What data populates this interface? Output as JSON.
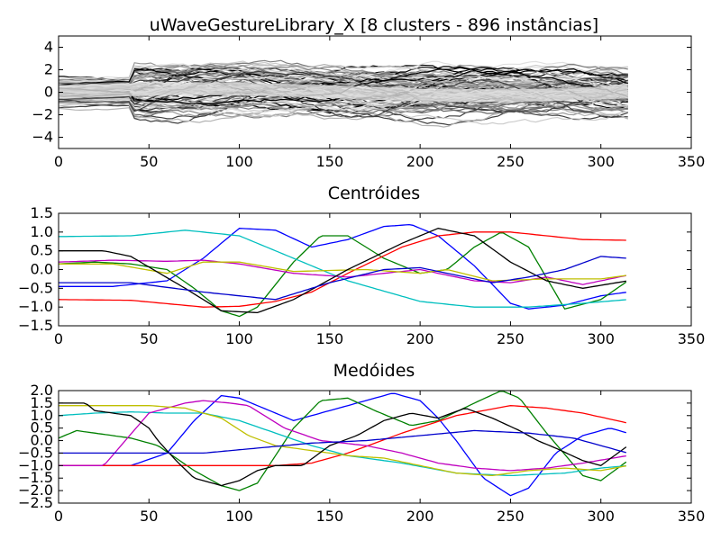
{
  "chart_data": [
    {
      "type": "line",
      "panel": "raw",
      "title": "uWaveGestureLibrary_X [8 clusters - 896 instâncias]",
      "xlim": [
        0,
        350
      ],
      "ylim": [
        -5,
        5
      ],
      "xticks": [
        "0",
        "50",
        "100",
        "150",
        "200",
        "250",
        "300",
        "350"
      ],
      "yticks": [
        "4",
        "2",
        "0",
        "−2",
        "−4"
      ],
      "ytick_values": [
        4,
        2,
        0,
        -2,
        -4
      ],
      "series_length": 315,
      "series_count": 896,
      "colors": [
        "#000000",
        "#404040",
        "#666666",
        "#808080",
        "#999999",
        "#b3b3b3",
        "#cccccc",
        "#e0e0e0"
      ]
    },
    {
      "type": "line",
      "panel": "centroids",
      "title": "Centróides",
      "xlim": [
        0,
        350
      ],
      "ylim": [
        -1.5,
        1.5
      ],
      "xticks": [
        "0",
        "50",
        "100",
        "150",
        "200",
        "250",
        "300",
        "350"
      ],
      "yticks": [
        "1.5",
        "1.0",
        "0.5",
        "0.0",
        "−0.5",
        "−1.0",
        "−1.5"
      ],
      "ytick_values": [
        1.5,
        1.0,
        0.5,
        0.0,
        -0.5,
        -1.0,
        -1.5
      ],
      "series": [
        {
          "color": "#0000ff",
          "x": [
            0,
            30,
            60,
            80,
            100,
            120,
            140,
            160,
            180,
            195,
            210,
            230,
            250,
            260,
            280,
            300,
            315
          ],
          "y": [
            -0.45,
            -0.45,
            -0.3,
            0.3,
            1.1,
            1.05,
            0.6,
            0.8,
            1.15,
            1.2,
            0.9,
            0.1,
            -0.9,
            -1.05,
            -0.95,
            -0.7,
            -0.6
          ]
        },
        {
          "color": "#008000",
          "x": [
            0,
            20,
            40,
            60,
            75,
            90,
            100,
            110,
            130,
            145,
            160,
            180,
            200,
            215,
            230,
            245,
            260,
            280,
            300,
            315
          ],
          "y": [
            0.15,
            0.2,
            0.15,
            0.0,
            -0.5,
            -1.1,
            -1.25,
            -1.0,
            0.2,
            0.9,
            0.9,
            0.3,
            -0.1,
            0.0,
            0.6,
            1.0,
            0.6,
            -1.05,
            -0.8,
            -0.3
          ]
        },
        {
          "color": "#ff0000",
          "x": [
            0,
            40,
            80,
            100,
            120,
            140,
            160,
            190,
            210,
            230,
            250,
            270,
            290,
            315
          ],
          "y": [
            -0.8,
            -0.82,
            -1.0,
            -0.98,
            -0.85,
            -0.6,
            -0.1,
            0.6,
            0.9,
            1.0,
            1.0,
            0.9,
            0.8,
            0.78
          ]
        },
        {
          "color": "#00bfbf",
          "x": [
            0,
            40,
            70,
            100,
            130,
            160,
            200,
            230,
            260,
            290,
            315
          ],
          "y": [
            0.88,
            0.9,
            1.05,
            0.9,
            0.3,
            -0.3,
            -0.85,
            -1.0,
            -1.0,
            -0.9,
            -0.8
          ]
        },
        {
          "color": "#bf00bf",
          "x": [
            0,
            30,
            60,
            80,
            100,
            130,
            160,
            200,
            230,
            250,
            270,
            290,
            315
          ],
          "y": [
            0.2,
            0.25,
            0.22,
            0.25,
            0.15,
            -0.1,
            -0.2,
            0.0,
            -0.3,
            -0.35,
            -0.2,
            -0.4,
            -0.15
          ]
        },
        {
          "color": "#bfbf00",
          "x": [
            0,
            30,
            60,
            80,
            100,
            130,
            170,
            200,
            215,
            240,
            270,
            300,
            315
          ],
          "y": [
            0.15,
            0.15,
            -0.1,
            0.2,
            0.2,
            -0.05,
            0.0,
            -0.1,
            0.0,
            -0.3,
            -0.25,
            -0.25,
            -0.15
          ]
        },
        {
          "color": "#000000",
          "x": [
            0,
            25,
            40,
            70,
            90,
            110,
            130,
            160,
            190,
            210,
            230,
            250,
            270,
            290,
            315
          ],
          "y": [
            0.5,
            0.5,
            0.35,
            -0.5,
            -1.1,
            -1.15,
            -0.8,
            0.0,
            0.7,
            1.1,
            0.9,
            0.2,
            -0.3,
            -0.5,
            -0.3
          ]
        },
        {
          "color": "#0000cc",
          "x": [
            0,
            40,
            80,
            120,
            150,
            180,
            200,
            215,
            240,
            260,
            280,
            300,
            315
          ],
          "y": [
            -0.35,
            -0.35,
            -0.6,
            -0.8,
            -0.35,
            0.0,
            0.05,
            -0.1,
            -0.35,
            -0.2,
            0.0,
            0.35,
            0.3
          ]
        }
      ]
    },
    {
      "type": "line",
      "panel": "medoids",
      "title": "Medóides",
      "xlim": [
        0,
        350
      ],
      "ylim": [
        -2.5,
        2.0
      ],
      "xticks": [
        "0",
        "50",
        "100",
        "150",
        "200",
        "250",
        "300",
        "350"
      ],
      "yticks": [
        "2.0",
        "1.5",
        "1.0",
        "0.5",
        "0.0",
        "−0.5",
        "−1.0",
        "−1.5",
        "−2.0",
        "−2.5"
      ],
      "ytick_values": [
        2.0,
        1.5,
        1.0,
        0.5,
        0.0,
        -0.5,
        -1.0,
        -1.5,
        -2.0,
        -2.5
      ],
      "series": [
        {
          "color": "#0000ff",
          "x": [
            0,
            25,
            40,
            60,
            75,
            90,
            100,
            110,
            130,
            150,
            170,
            185,
            200,
            210,
            220,
            235,
            250,
            260,
            275,
            290,
            305,
            315
          ],
          "y": [
            -1.0,
            -1.0,
            -1.0,
            -0.5,
            0.8,
            1.8,
            1.7,
            1.4,
            0.8,
            1.2,
            1.6,
            1.9,
            1.6,
            0.9,
            0.0,
            -1.5,
            -2.2,
            -1.9,
            -0.5,
            0.2,
            0.5,
            0.3
          ]
        },
        {
          "color": "#008000",
          "x": [
            0,
            10,
            20,
            40,
            55,
            75,
            90,
            100,
            110,
            130,
            145,
            160,
            175,
            195,
            210,
            230,
            245,
            255,
            270,
            290,
            300,
            315
          ],
          "y": [
            0.1,
            0.4,
            0.3,
            0.1,
            -0.2,
            -1.2,
            -1.8,
            -2.0,
            -1.7,
            0.5,
            1.6,
            1.7,
            1.2,
            0.6,
            0.8,
            1.5,
            2.0,
            1.7,
            0.3,
            -1.4,
            -1.6,
            -0.8
          ]
        },
        {
          "color": "#ff0000",
          "x": [
            0,
            30,
            60,
            90,
            120,
            140,
            160,
            190,
            220,
            250,
            270,
            290,
            315
          ],
          "y": [
            -1.0,
            -1.0,
            -1.0,
            -1.0,
            -1.0,
            -0.9,
            -0.5,
            0.3,
            1.0,
            1.4,
            1.3,
            1.1,
            0.7
          ]
        },
        {
          "color": "#00bfbf",
          "x": [
            0,
            20,
            40,
            60,
            80,
            100,
            120,
            140,
            160,
            190,
            220,
            250,
            280,
            300,
            315
          ],
          "y": [
            1.0,
            1.1,
            1.15,
            1.1,
            1.1,
            0.8,
            0.3,
            -0.2,
            -0.6,
            -0.9,
            -1.3,
            -1.4,
            -1.3,
            -1.1,
            -1.0
          ]
        },
        {
          "color": "#bf00bf",
          "x": [
            0,
            25,
            50,
            70,
            80,
            95,
            105,
            125,
            145,
            170,
            190,
            210,
            230,
            250,
            270,
            290,
            315
          ],
          "y": [
            -1.0,
            -1.0,
            1.1,
            1.5,
            1.6,
            1.5,
            1.4,
            0.5,
            0.0,
            -0.2,
            -0.5,
            -0.9,
            -1.1,
            -1.2,
            -1.1,
            -0.9,
            -0.6
          ]
        },
        {
          "color": "#bfbf00",
          "x": [
            0,
            30,
            50,
            70,
            90,
            105,
            120,
            140,
            160,
            180,
            200,
            220,
            240,
            260,
            280,
            300,
            315
          ],
          "y": [
            1.4,
            1.4,
            1.4,
            1.3,
            0.9,
            0.2,
            -0.2,
            -0.4,
            -0.6,
            -0.7,
            -1.0,
            -1.3,
            -1.4,
            -1.2,
            -1.1,
            -1.2,
            -1.0
          ]
        },
        {
          "color": "#000000",
          "x": [
            0,
            15,
            20,
            40,
            50,
            55,
            65,
            75,
            90,
            100,
            110,
            120,
            135,
            150,
            165,
            180,
            195,
            210,
            225,
            240,
            255,
            265,
            275,
            290,
            300,
            315
          ],
          "y": [
            1.5,
            1.5,
            1.2,
            1.0,
            0.5,
            0.0,
            -0.8,
            -1.5,
            -1.8,
            -1.6,
            -1.2,
            -1.0,
            -1.0,
            -0.2,
            0.2,
            0.8,
            1.1,
            0.9,
            1.3,
            0.9,
            0.4,
            0.0,
            -0.3,
            -0.8,
            -1.0,
            -0.2
          ]
        },
        {
          "color": "#0000cc",
          "x": [
            0,
            40,
            80,
            110,
            140,
            170,
            200,
            230,
            260,
            285,
            300,
            315
          ],
          "y": [
            -0.5,
            -0.5,
            -0.5,
            -0.3,
            -0.1,
            0.0,
            0.2,
            0.4,
            0.3,
            0.1,
            -0.2,
            -0.5
          ]
        }
      ]
    }
  ]
}
